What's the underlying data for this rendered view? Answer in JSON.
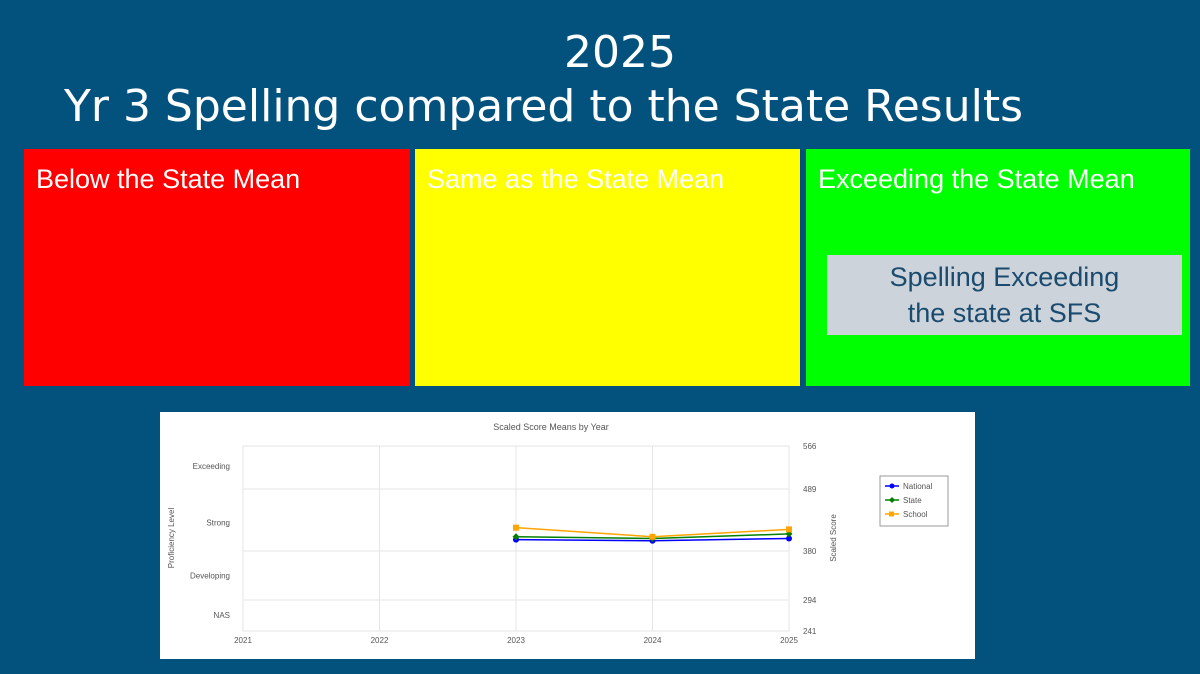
{
  "header": {
    "year": "2025",
    "title": "Yr 3 Spelling compared to the State Results"
  },
  "panels": {
    "below": {
      "label": "Below the State Mean",
      "color": "#ff0000"
    },
    "same": {
      "label": "Same as the State Mean",
      "color": "#ffff00"
    },
    "exceed": {
      "label": "Exceeding the State Mean",
      "color": "#00ff00",
      "note_line1": "Spelling Exceeding",
      "note_line2": "the state at SFS"
    }
  },
  "chart_data": {
    "type": "line",
    "title": "Scaled Score Means by Year",
    "x": [
      2021,
      2022,
      2023,
      2024,
      2025
    ],
    "left_axis_label": "Proficiency Level",
    "left_levels": [
      "Exceeding",
      "Strong",
      "Developing",
      "NAS"
    ],
    "right_axis_label": "Scaled Score",
    "right_ticks": [
      566,
      489,
      380,
      294,
      241
    ],
    "ylim": [
      241,
      566
    ],
    "series": [
      {
        "name": "National",
        "color": "#0000ff",
        "marker": "circle",
        "x": [
          2023,
          2024,
          2025
        ],
        "values": [
          400,
          398,
          402
        ]
      },
      {
        "name": "State",
        "color": "#008000",
        "marker": "diamond",
        "x": [
          2023,
          2024,
          2025
        ],
        "values": [
          405,
          402,
          410
        ]
      },
      {
        "name": "School",
        "color": "#ffa500",
        "marker": "square",
        "x": [
          2023,
          2024,
          2025
        ],
        "values": [
          421,
          405,
          418
        ]
      }
    ],
    "legend_position": "right",
    "grid": true
  }
}
